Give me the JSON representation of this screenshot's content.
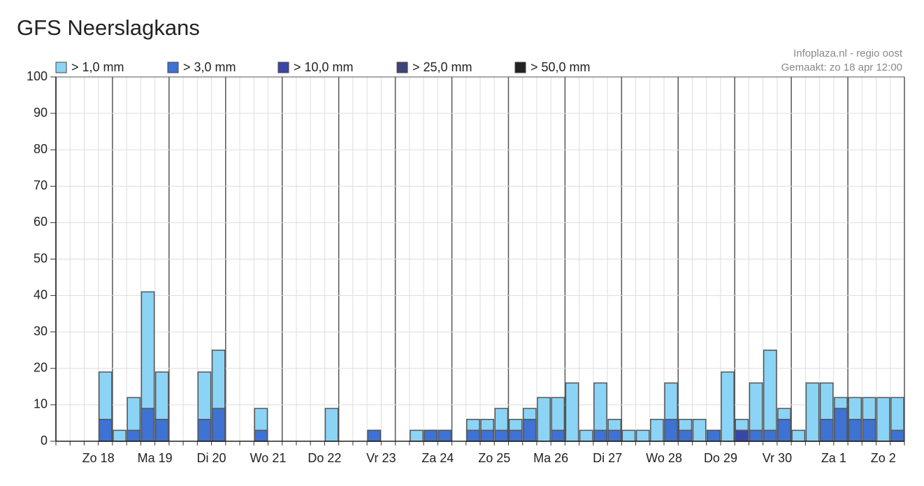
{
  "chart_data": {
    "type": "bar",
    "title": "GFS Neerslagkans",
    "annotations": [
      "Infoplaza.nl - regio oost",
      "Gemaakt: zo 18 apr 12:00"
    ],
    "categories": [
      null,
      null,
      "Zo 18",
      null,
      null,
      null,
      "Ma 19",
      null,
      null,
      null,
      "Di 20",
      null,
      null,
      null,
      "Wo 21",
      null,
      null,
      null,
      "Do 22",
      null,
      null,
      null,
      "Vr 23",
      null,
      null,
      null,
      "Za 24",
      null,
      null,
      null,
      "Zo 25",
      null,
      null,
      null,
      "Ma 26",
      null,
      null,
      null,
      "Di 27",
      null,
      null,
      null,
      "Wo 28",
      null,
      null,
      null,
      "Do 29",
      null,
      null,
      null,
      "Vr 30",
      null,
      null,
      null,
      "Za 1",
      null,
      null,
      null,
      "Zo 2",
      null
    ],
    "series": [
      {
        "name": "> 1,0 mm",
        "color": "#8bd4f6",
        "values": [
          0,
          0,
          0,
          19,
          3,
          12,
          41,
          19,
          0,
          0,
          19,
          25,
          0,
          0,
          9,
          0,
          0,
          0,
          0,
          9,
          0,
          0,
          3,
          0,
          0,
          3,
          3,
          3,
          0,
          6,
          6,
          9,
          6,
          9,
          12,
          12,
          16,
          3,
          16,
          6,
          3,
          3,
          6,
          16,
          6,
          6,
          3,
          19,
          6,
          16,
          25,
          9,
          3,
          16,
          16,
          12,
          12,
          12,
          12,
          12
        ]
      },
      {
        "name": "> 3,0 mm",
        "color": "#3e72d3",
        "values": [
          0,
          0,
          0,
          6,
          0,
          3,
          9,
          6,
          0,
          0,
          6,
          9,
          0,
          0,
          3,
          0,
          0,
          0,
          0,
          0,
          0,
          0,
          3,
          0,
          0,
          0,
          3,
          3,
          0,
          3,
          3,
          3,
          3,
          6,
          0,
          3,
          0,
          0,
          3,
          3,
          0,
          0,
          0,
          6,
          3,
          0,
          3,
          0,
          3,
          3,
          3,
          6,
          0,
          0,
          6,
          9,
          6,
          6,
          0,
          3
        ]
      },
      {
        "name": "> 10,0 mm",
        "color": "#3a45aa",
        "values": [
          0,
          0,
          0,
          0,
          0,
          0,
          0,
          0,
          0,
          0,
          0,
          0,
          0,
          0,
          0,
          0,
          0,
          0,
          0,
          0,
          0,
          0,
          0,
          0,
          0,
          0,
          0,
          0,
          0,
          0,
          0,
          0,
          0,
          0,
          0,
          0,
          0,
          0,
          0,
          0,
          0,
          0,
          0,
          0,
          0,
          0,
          0,
          0,
          3,
          0,
          0,
          0,
          0,
          0,
          0,
          0,
          0,
          0,
          0,
          0
        ]
      },
      {
        "name": "> 25,0 mm",
        "color": "#3d4478",
        "values": [
          0,
          0,
          0,
          0,
          0,
          0,
          0,
          0,
          0,
          0,
          0,
          0,
          0,
          0,
          0,
          0,
          0,
          0,
          0,
          0,
          0,
          0,
          0,
          0,
          0,
          0,
          0,
          0,
          0,
          0,
          0,
          0,
          0,
          0,
          0,
          0,
          0,
          0,
          0,
          0,
          0,
          0,
          0,
          0,
          0,
          0,
          0,
          0,
          0,
          0,
          0,
          0,
          0,
          0,
          0,
          0,
          0,
          0,
          0,
          0
        ]
      },
      {
        "name": "> 50,0 mm",
        "color": "#222222",
        "values": [
          0,
          0,
          0,
          0,
          0,
          0,
          0,
          0,
          0,
          0,
          0,
          0,
          0,
          0,
          0,
          0,
          0,
          0,
          0,
          0,
          0,
          0,
          0,
          0,
          0,
          0,
          0,
          0,
          0,
          0,
          0,
          0,
          0,
          0,
          0,
          0,
          0,
          0,
          0,
          0,
          0,
          0,
          0,
          0,
          0,
          0,
          0,
          0,
          0,
          0,
          0,
          0,
          0,
          0,
          0,
          0,
          0,
          0,
          0,
          0
        ]
      }
    ],
    "ylim": [
      0,
      100
    ],
    "yticks": [
      0,
      10,
      20,
      30,
      40,
      50,
      60,
      70,
      80,
      90,
      100
    ],
    "grid": true
  }
}
